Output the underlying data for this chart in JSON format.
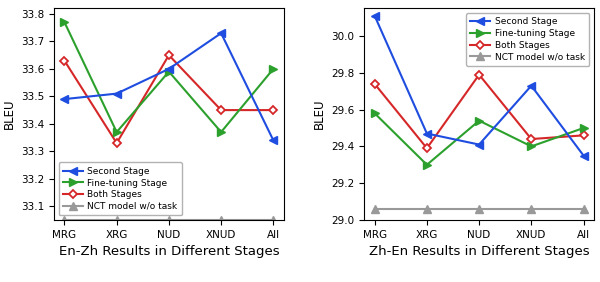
{
  "categories": [
    "MRG",
    "XRG",
    "NUD",
    "XNUD",
    "All"
  ],
  "enzh_second_stage": [
    33.49,
    33.51,
    33.6,
    33.73,
    33.34
  ],
  "enzh_finetuning": [
    33.77,
    33.37,
    33.59,
    33.37,
    33.6
  ],
  "enzh_both": [
    33.63,
    33.33,
    33.65,
    33.45,
    33.45
  ],
  "enzh_nct": [
    33.05,
    33.05,
    33.05,
    33.05,
    33.05
  ],
  "zhen_second_stage": [
    30.11,
    29.47,
    29.41,
    29.73,
    29.35
  ],
  "zhen_finetuning": [
    29.58,
    29.3,
    29.54,
    29.4,
    29.5
  ],
  "zhen_both": [
    29.74,
    29.39,
    29.79,
    29.44,
    29.46
  ],
  "zhen_nct": [
    29.06,
    29.06,
    29.06,
    29.06,
    29.06
  ],
  "enzh_ylim": [
    33.05,
    33.82
  ],
  "enzh_yticks": [
    33.1,
    33.2,
    33.3,
    33.4,
    33.5,
    33.6,
    33.7,
    33.8
  ],
  "zhen_ylim": [
    29.0,
    30.15
  ],
  "zhen_yticks": [
    29.0,
    29.2,
    29.4,
    29.6,
    29.8,
    30.0
  ],
  "color_second": "#1f4de0",
  "color_finetuning": "#2ca02c",
  "color_both": "#d62728",
  "color_nct": "#999999",
  "xlabel_left": "En-Zh Results in Different Stages",
  "xlabel_right": "Zh-En Results in Different Stages",
  "ylabel": "BLEU",
  "legend_labels": [
    "Second Stage",
    "Fine-tuning Stage",
    "Both Stages",
    "NCT model w/o task"
  ]
}
